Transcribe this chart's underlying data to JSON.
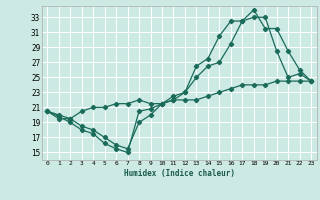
{
  "xlabel": "Humidex (Indice chaleur)",
  "bg_color": "#cce9e4",
  "grid_color": "#ffffff",
  "line_color": "#1a6b5a",
  "xlim": [
    -0.5,
    23.5
  ],
  "ylim": [
    14.0,
    34.5
  ],
  "yticks": [
    15,
    17,
    19,
    21,
    23,
    25,
    27,
    29,
    31,
    33
  ],
  "xticks": [
    0,
    1,
    2,
    3,
    4,
    5,
    6,
    7,
    8,
    9,
    10,
    11,
    12,
    13,
    14,
    15,
    16,
    17,
    18,
    19,
    20,
    21,
    22,
    23
  ],
  "line1_x": [
    0,
    1,
    2,
    3,
    4,
    5,
    6,
    7,
    8,
    9,
    10,
    11,
    12,
    13,
    14,
    15,
    16,
    17,
    18,
    19,
    20,
    21,
    22,
    23
  ],
  "line1_y": [
    20.5,
    19.8,
    19.0,
    18.0,
    17.5,
    16.2,
    15.5,
    15.0,
    20.5,
    20.8,
    21.5,
    22.0,
    23.0,
    25.0,
    26.5,
    27.0,
    29.5,
    32.5,
    33.0,
    33.0,
    28.5,
    25.0,
    25.5,
    24.5
  ],
  "line2_x": [
    0,
    1,
    2,
    3,
    4,
    5,
    6,
    7,
    8,
    9,
    10,
    11,
    12,
    13,
    14,
    15,
    16,
    17,
    18,
    19,
    20,
    21,
    22,
    23
  ],
  "line2_y": [
    20.5,
    19.5,
    19.5,
    18.5,
    18.0,
    17.0,
    16.0,
    15.5,
    19.0,
    20.0,
    21.5,
    22.5,
    23.0,
    26.5,
    27.5,
    30.5,
    32.5,
    32.5,
    34.0,
    31.5,
    31.5,
    28.5,
    26.0,
    24.5
  ],
  "line3_x": [
    0,
    1,
    2,
    3,
    4,
    5,
    6,
    7,
    8,
    9,
    10,
    11,
    12,
    13,
    14,
    15,
    16,
    17,
    18,
    19,
    20,
    21,
    22,
    23
  ],
  "line3_y": [
    20.5,
    20.0,
    19.5,
    20.5,
    21.0,
    21.0,
    21.5,
    21.5,
    22.0,
    21.5,
    21.5,
    22.0,
    22.0,
    22.0,
    22.5,
    23.0,
    23.5,
    24.0,
    24.0,
    24.0,
    24.5,
    24.5,
    24.5,
    24.5
  ]
}
